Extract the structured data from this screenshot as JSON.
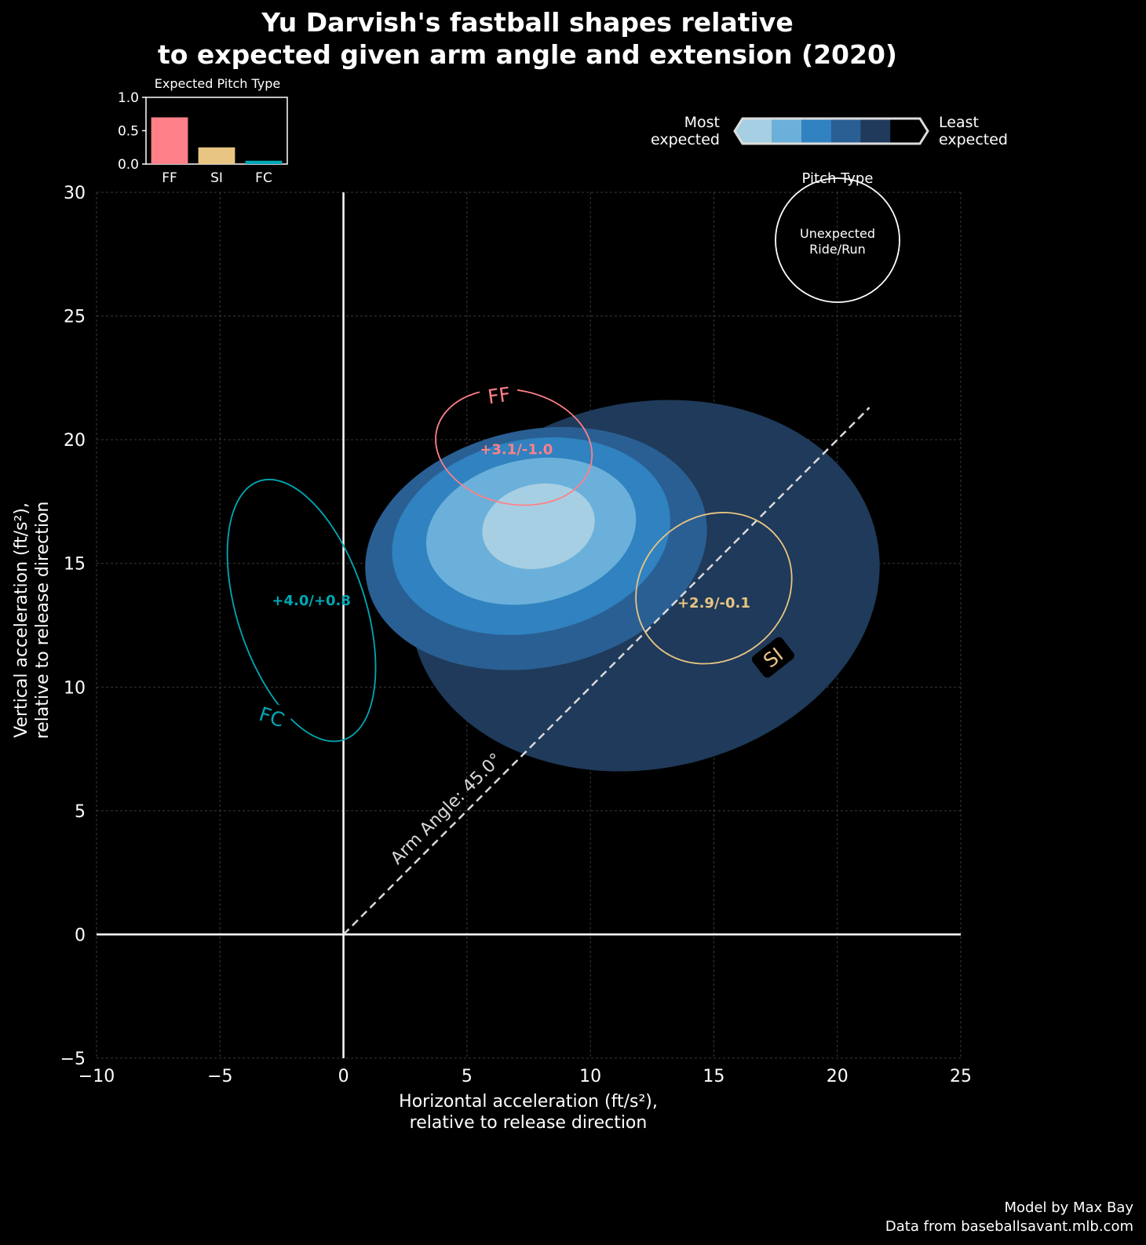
{
  "chart_data": {
    "type": "contour",
    "title_lines": [
      "Yu Darvish's fastball shapes relative",
      "to expected given arm angle and extension (2020)"
    ],
    "xlabel_lines": [
      "Horizontal acceleration (ft/s²),",
      "relative to release direction"
    ],
    "ylabel_lines": [
      "Vertical acceleration (ft/s²),",
      "relative to release direction"
    ],
    "xlim": [
      -10,
      25
    ],
    "ylim": [
      -5,
      30
    ],
    "x_ticks": [
      -10,
      -5,
      0,
      5,
      10,
      15,
      20,
      25
    ],
    "y_ticks": [
      -5,
      0,
      5,
      10,
      15,
      20,
      25,
      30
    ],
    "x_tick_labels": [
      "−10",
      "−5",
      "0",
      "5",
      "10",
      "15",
      "20",
      "25"
    ],
    "y_tick_labels": [
      "−5",
      "0",
      "5",
      "10",
      "15",
      "20",
      "25",
      "30"
    ],
    "grid": true,
    "arm_angle": {
      "label": "Arm Angle: 45.0°",
      "degrees": 45.0,
      "end_x": 21.3
    },
    "density_levels": [
      {
        "level": 1,
        "color": "#1f3a5a",
        "center": [
          12.2,
          14.1
        ],
        "rx": 9.6,
        "ry": 7.4
      },
      {
        "level": 2,
        "color": "#2a5f93",
        "center": [
          7.8,
          15.6
        ],
        "rx": 7.0,
        "ry": 4.8
      },
      {
        "level": 3,
        "color": "#3082c0",
        "center": [
          7.6,
          16.1
        ],
        "rx": 5.7,
        "ry": 3.9
      },
      {
        "level": 4,
        "color": "#6bb0da",
        "center": [
          7.6,
          16.3
        ],
        "rx": 4.3,
        "ry": 2.9
      },
      {
        "level": 5,
        "color": "#a7cfe3",
        "center": [
          7.9,
          16.5
        ],
        "rx": 2.3,
        "ry": 1.7
      }
    ],
    "pitch_types": [
      {
        "name": "FF",
        "color": "#ff8088",
        "center": [
          6.9,
          19.7
        ],
        "rx": 3.2,
        "ry": 2.3,
        "tilt": 12,
        "annotation": "+3.1/-1.0",
        "ann_pos": [
          7.0,
          19.6
        ],
        "label_pos": [
          6.3,
          21.8
        ],
        "label_rot": -8
      },
      {
        "name": "SI",
        "color": "#e8c583",
        "center": [
          15.0,
          14.0
        ],
        "rx": 3.3,
        "ry": 2.9,
        "tilt": -38,
        "annotation": "+2.9/-0.1",
        "ann_pos": [
          15.0,
          13.4
        ],
        "label_pos": [
          17.4,
          11.2
        ],
        "label_rot": -38
      },
      {
        "name": "FC",
        "color": "#00a8b5",
        "center": [
          -1.7,
          13.1
        ],
        "rx": 2.6,
        "ry": 5.5,
        "tilt": -18,
        "annotation": "+4.0/+0.8",
        "ann_pos": [
          -1.3,
          13.5
        ],
        "label_pos": [
          -2.9,
          8.8
        ],
        "label_rot": 18
      }
    ],
    "inset": {
      "title": "Expected Pitch Type",
      "categories": [
        "FF",
        "SI",
        "FC"
      ],
      "values": [
        0.7,
        0.25,
        0.05
      ],
      "colors": [
        "#ff8088",
        "#e8c583",
        "#00a8b5"
      ],
      "ylim": [
        0,
        1
      ],
      "y_ticks": [
        0,
        0.5,
        1
      ],
      "y_tick_labels": [
        "0.0",
        "0.5",
        "1.0"
      ]
    },
    "colorbar": {
      "left_label": [
        "Most",
        "expected"
      ],
      "right_label": [
        "Least",
        "expected"
      ],
      "colors": [
        "#a7cfe3",
        "#6bb0da",
        "#3082c0",
        "#2a5f93",
        "#1f3a5a",
        "#000000"
      ]
    },
    "legend": {
      "title": "Pitch Type",
      "entry_lines": [
        "Unexpected",
        "Ride/Run"
      ],
      "placement": "top-right"
    }
  },
  "credits": [
    "Model by Max Bay",
    "Data from baseballsavant.mlb.com"
  ]
}
